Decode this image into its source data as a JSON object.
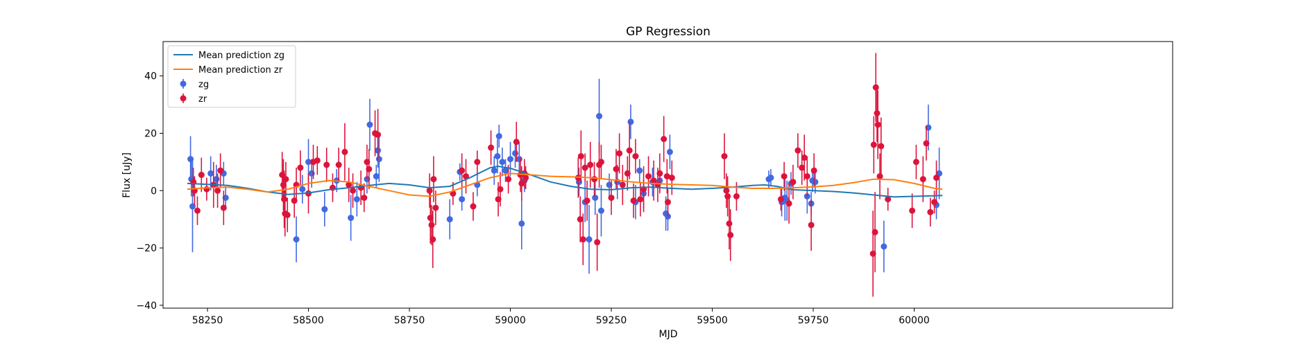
{
  "chart_data": {
    "type": "scatter",
    "title": "GP Regression",
    "xlabel": "MJD",
    "ylabel": "Flux [uJy]",
    "xlim": [
      58140,
      60640
    ],
    "ylim": [
      -41,
      52
    ],
    "xticks": [
      58250,
      58500,
      58750,
      59000,
      59250,
      59500,
      59750,
      60000
    ],
    "yticks": [
      -40,
      -20,
      0,
      20,
      40
    ],
    "grid": false,
    "legend_position": "top-left",
    "legend": [
      "Mean prediction zg",
      "Mean prediction zr",
      "zg",
      "zr"
    ],
    "colors": {
      "zg_line": "#1f77b4",
      "zr_line": "#ff7f0e",
      "zg_points": "#4169e1",
      "zr_points": "#dc143c"
    },
    "lines": [
      {
        "name": "Mean prediction zg",
        "color": "#1f77b4",
        "x": [
          58200,
          58250,
          58300,
          58350,
          58400,
          58450,
          58500,
          58550,
          58600,
          58650,
          58700,
          58750,
          58800,
          58850,
          58900,
          58950,
          58970,
          59000,
          59050,
          59100,
          59150,
          59200,
          59250,
          59300,
          59350,
          59400,
          59450,
          59500,
          59550,
          59600,
          59630,
          59660,
          59700,
          59750,
          59800,
          59850,
          59900,
          59950,
          60000,
          60050,
          60070
        ],
        "y": [
          2.5,
          2.2,
          1.8,
          0.8,
          -0.5,
          -1.3,
          -0.8,
          0.3,
          1.0,
          1.8,
          2.5,
          2.0,
          1.0,
          1.5,
          4.5,
          8.0,
          8.5,
          7.8,
          5.5,
          3.0,
          1.5,
          0.5,
          0.3,
          1.0,
          1.2,
          0.8,
          0.5,
          0.8,
          1.2,
          1.8,
          2.0,
          1.5,
          0.3,
          0.0,
          -0.3,
          -0.8,
          -1.5,
          -2.2,
          -2.0,
          -1.8,
          -1.7
        ]
      },
      {
        "name": "Mean prediction zr",
        "color": "#ff7f0e",
        "x": [
          58200,
          58250,
          58300,
          58350,
          58400,
          58450,
          58500,
          58550,
          58600,
          58650,
          58700,
          58750,
          58800,
          58850,
          58900,
          58950,
          59000,
          59050,
          59100,
          59150,
          59200,
          59250,
          59300,
          59350,
          59400,
          59450,
          59500,
          59550,
          59600,
          59650,
          59700,
          59750,
          59800,
          59850,
          59900,
          59950,
          60000,
          60050,
          60070
        ],
        "y": [
          0.5,
          1.0,
          1.2,
          0.5,
          -0.5,
          0.5,
          2.5,
          3.5,
          3.0,
          1.5,
          0.0,
          -1.5,
          -2.0,
          -0.5,
          2.0,
          4.5,
          6.0,
          5.5,
          5.0,
          4.8,
          4.5,
          3.8,
          3.0,
          2.5,
          2.2,
          2.0,
          1.8,
          1.2,
          0.8,
          0.8,
          1.0,
          1.3,
          1.8,
          2.8,
          4.0,
          3.8,
          2.5,
          0.8,
          0.5
        ]
      }
    ],
    "series": [
      {
        "name": "zg",
        "color": "#4169e1",
        "points": [
          [
            58208,
            11,
            8
          ],
          [
            58210,
            4,
            6
          ],
          [
            58213,
            -5.5,
            16
          ],
          [
            58258,
            6,
            6
          ],
          [
            58272,
            4,
            5
          ],
          [
            58290,
            6,
            4
          ],
          [
            58295,
            -2.5,
            4
          ],
          [
            58470,
            -17,
            8
          ],
          [
            58485,
            0.5,
            5
          ],
          [
            58500,
            10,
            8
          ],
          [
            58508,
            6,
            5
          ],
          [
            58540,
            -6.5,
            6
          ],
          [
            58570,
            3.5,
            4
          ],
          [
            58605,
            -9.5,
            8
          ],
          [
            58620,
            -3,
            6
          ],
          [
            58645,
            4,
            5
          ],
          [
            58652,
            23,
            9
          ],
          [
            58668,
            5,
            4
          ],
          [
            58672,
            14,
            6
          ],
          [
            58675,
            11,
            8
          ],
          [
            58850,
            -10,
            7
          ],
          [
            58875,
            6.5,
            3
          ],
          [
            58880,
            -3,
            4
          ],
          [
            58918,
            2,
            4
          ],
          [
            58960,
            7,
            5
          ],
          [
            58968,
            12,
            6
          ],
          [
            58972,
            19,
            4
          ],
          [
            58980,
            10,
            5
          ],
          [
            58988,
            7,
            4
          ],
          [
            59000,
            11,
            6
          ],
          [
            59012,
            13,
            5
          ],
          [
            59022,
            11,
            6
          ],
          [
            59028,
            -11.5,
            9
          ],
          [
            59035,
            3.5,
            4
          ],
          [
            59170,
            3,
            5
          ],
          [
            59185,
            -4,
            7
          ],
          [
            59195,
            -17,
            12
          ],
          [
            59210,
            -2.5,
            6
          ],
          [
            59220,
            26,
            13
          ],
          [
            59225,
            -7,
            9
          ],
          [
            59245,
            2,
            4
          ],
          [
            59265,
            3,
            6
          ],
          [
            59298,
            24,
            6
          ],
          [
            59310,
            -4,
            6
          ],
          [
            59320,
            7,
            4
          ],
          [
            59330,
            -1,
            5
          ],
          [
            59352,
            3,
            5
          ],
          [
            59370,
            3.5,
            4
          ],
          [
            59385,
            -8,
            6
          ],
          [
            59390,
            -9,
            5
          ],
          [
            59395,
            13.5,
            6
          ],
          [
            59640,
            4,
            3
          ],
          [
            59645,
            4.5,
            3
          ],
          [
            59672,
            -4,
            5
          ],
          [
            59680,
            -2.5,
            8
          ],
          [
            59685,
            -3.5,
            7
          ],
          [
            59695,
            2.5,
            4
          ],
          [
            59735,
            -2,
            6
          ],
          [
            59745,
            -4.5,
            4
          ],
          [
            59748,
            3.5,
            4
          ],
          [
            59755,
            3,
            4
          ],
          [
            59925,
            -19.5,
            9
          ],
          [
            60035,
            22,
            8
          ],
          [
            60055,
            -5,
            5
          ],
          [
            60062,
            6,
            9
          ]
        ]
      },
      {
        "name": "zr",
        "color": "#dc143c",
        "points": [
          [
            58215,
            3,
            5
          ],
          [
            58218,
            0,
            5
          ],
          [
            58225,
            -7,
            5
          ],
          [
            58235,
            5.5,
            6
          ],
          [
            58248,
            0.5,
            4
          ],
          [
            58265,
            2,
            8
          ],
          [
            58275,
            0,
            6
          ],
          [
            58282,
            7,
            6
          ],
          [
            58290,
            -6,
            6
          ],
          [
            58435,
            5.5,
            8
          ],
          [
            58438,
            2,
            9
          ],
          [
            58440,
            -3,
            10
          ],
          [
            58442,
            -8,
            8
          ],
          [
            58444,
            4,
            6
          ],
          [
            58448,
            -8.5,
            6
          ],
          [
            58465,
            -3.5,
            6
          ],
          [
            58470,
            2,
            6
          ],
          [
            58480,
            8,
            6
          ],
          [
            58500,
            -1,
            7
          ],
          [
            58512,
            10,
            6
          ],
          [
            58522,
            10.5,
            5
          ],
          [
            58545,
            9,
            6
          ],
          [
            58560,
            1,
            5
          ],
          [
            58575,
            9,
            6
          ],
          [
            58590,
            13.5,
            10
          ],
          [
            58600,
            2,
            6
          ],
          [
            58610,
            0,
            6
          ],
          [
            58630,
            1,
            6
          ],
          [
            58638,
            -2.5,
            5
          ],
          [
            58645,
            10,
            6
          ],
          [
            58650,
            7.5,
            7
          ],
          [
            58665,
            20,
            8
          ],
          [
            58672,
            19.5,
            9
          ],
          [
            58800,
            0,
            6
          ],
          [
            58802,
            -9.5,
            9
          ],
          [
            58805,
            -12,
            7
          ],
          [
            58808,
            -17,
            10
          ],
          [
            58810,
            4,
            8
          ],
          [
            58815,
            -6,
            6
          ],
          [
            58858,
            -1,
            4
          ],
          [
            58880,
            7,
            6
          ],
          [
            58890,
            5,
            6
          ],
          [
            58908,
            -5.5,
            5
          ],
          [
            58918,
            10,
            4
          ],
          [
            58952,
            15,
            6
          ],
          [
            58970,
            -3,
            6
          ],
          [
            58975,
            0.5,
            6
          ],
          [
            58995,
            4,
            5
          ],
          [
            59015,
            17,
            7
          ],
          [
            59025,
            5.5,
            6
          ],
          [
            59028,
            2.5,
            6
          ],
          [
            59035,
            6,
            5
          ],
          [
            59038,
            4.5,
            4
          ],
          [
            59168,
            4.5,
            7
          ],
          [
            59173,
            -10,
            8
          ],
          [
            59175,
            12,
            9
          ],
          [
            59180,
            -17,
            9
          ],
          [
            59185,
            8,
            5
          ],
          [
            59190,
            -3.5,
            7
          ],
          [
            59198,
            9,
            8
          ],
          [
            59208,
            4,
            6
          ],
          [
            59215,
            -18,
            10
          ],
          [
            59220,
            9,
            8
          ],
          [
            59225,
            10,
            6
          ],
          [
            59250,
            -2.5,
            6
          ],
          [
            59262,
            7.5,
            7
          ],
          [
            59270,
            13,
            7
          ],
          [
            59278,
            2,
            7
          ],
          [
            59290,
            6,
            6
          ],
          [
            59295,
            14,
            10
          ],
          [
            59305,
            -3.5,
            6
          ],
          [
            59310,
            12,
            6
          ],
          [
            59322,
            -3,
            6
          ],
          [
            59330,
            0.5,
            8
          ],
          [
            59342,
            5,
            7
          ],
          [
            59355,
            3.5,
            7
          ],
          [
            59365,
            2,
            6
          ],
          [
            59370,
            6,
            7
          ],
          [
            59380,
            18,
            8
          ],
          [
            59388,
            5,
            6
          ],
          [
            59390,
            -4,
            5
          ],
          [
            59400,
            4.5,
            6
          ],
          [
            59530,
            12,
            8
          ],
          [
            59535,
            0,
            6
          ],
          [
            59538,
            -2,
            7
          ],
          [
            59542,
            -11.5,
            9
          ],
          [
            59545,
            -15.5,
            9
          ],
          [
            59560,
            -2,
            5
          ],
          [
            59670,
            -3,
            4
          ],
          [
            59678,
            5,
            5
          ],
          [
            59690,
            -4.5,
            7
          ],
          [
            59700,
            3,
            6
          ],
          [
            59712,
            14,
            6
          ],
          [
            59722,
            8,
            6
          ],
          [
            59728,
            11.5,
            8
          ],
          [
            59735,
            5,
            7
          ],
          [
            59745,
            -12,
            9
          ],
          [
            59752,
            7,
            6
          ],
          [
            59898,
            -22,
            15
          ],
          [
            59900,
            16,
            10
          ],
          [
            59903,
            -14.5,
            14
          ],
          [
            59905,
            36,
            12
          ],
          [
            59908,
            27,
            10
          ],
          [
            59910,
            23,
            12
          ],
          [
            59915,
            5,
            8
          ],
          [
            59918,
            15.5,
            10
          ],
          [
            59935,
            -3,
            4
          ],
          [
            59995,
            -7,
            6
          ],
          [
            60005,
            10,
            6
          ],
          [
            60022,
            4,
            8
          ],
          [
            60030,
            16.5,
            6
          ],
          [
            60040,
            -7.5,
            5
          ],
          [
            60050,
            -4,
            4
          ],
          [
            60055,
            4.5,
            6
          ]
        ]
      }
    ]
  }
}
